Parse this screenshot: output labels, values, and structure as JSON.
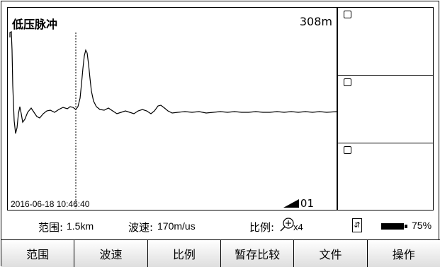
{
  "header": {
    "mode_title": "低压脉冲",
    "distance": "308m"
  },
  "plot": {
    "timestamp": "2016-06-18 10:46:40",
    "channel": "01"
  },
  "status_bar": {
    "range_label": "范围:",
    "range_value": "1.5km",
    "velocity_label": "波速:",
    "velocity_value": "170m/us",
    "scale_label": "比例:",
    "scale_value": "x4",
    "battery_percent": "75%",
    "icons": [
      "zoom-in-icon",
      "usb-icon",
      "battery-icon"
    ]
  },
  "softkeys": [
    {
      "label": "范围"
    },
    {
      "label": "波速"
    },
    {
      "label": "比例"
    },
    {
      "label": "暂存比较"
    },
    {
      "label": "文件"
    },
    {
      "label": "操作"
    }
  ],
  "side_panels": [
    {
      "checked": false
    },
    {
      "checked": false
    },
    {
      "checked": false
    }
  ],
  "colors": {
    "trace": "#000000",
    "background": "#ffffff",
    "softkey_gradient_bottom": "#dedede"
  }
}
